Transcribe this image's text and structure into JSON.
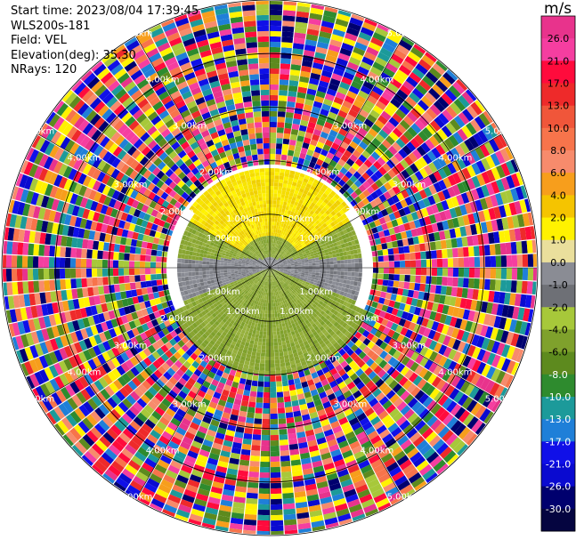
{
  "info": {
    "start_time": "Start time: 2023/08/04 17:39:45",
    "instrument": "WLS200s-181",
    "field": "Field: VEL",
    "elevation": "Elevation(deg): 35.30",
    "nrays": "NRays: 120"
  },
  "colorbar": {
    "unit": "m/s",
    "ticks": [
      "26.0",
      "21.0",
      "17.0",
      "13.0",
      "10.0",
      "8.0",
      "6.0",
      "4.0",
      "2.0",
      "1.0",
      "0.0",
      "-1.0",
      "-2.0",
      "-4.0",
      "-6.0",
      "-8.0",
      "-10.0",
      "-13.0",
      "-17.0",
      "-21.0",
      "-26.0",
      "-30.0"
    ],
    "colors": [
      "#e8338c",
      "#f53ea0",
      "#ff0b3c",
      "#ee2a2a",
      "#f0563a",
      "#f7744b",
      "#f78b6c",
      "#f79e1c",
      "#f5c400",
      "#fff200",
      "#eadf9c",
      "#8a8c94",
      "#6e7076",
      "#a7c83a",
      "#7fa12c",
      "#5d8a1e",
      "#2e8b2e",
      "#1c9a9a",
      "#1f7fd8",
      "#1010e8",
      "#0a0ad0",
      "#00006e",
      "#050540"
    ]
  },
  "chart_data": {
    "type": "heatmap",
    "projection": "polar PPI",
    "field": "VEL",
    "units": "m/s",
    "nrays": 120,
    "range_ring_labels": [
      "1.00km",
      "2.00km",
      "3.00km",
      "4.00km",
      "5.00km"
    ],
    "range_rings_km": [
      1,
      2,
      3,
      4,
      5
    ],
    "max_range_km": 5.5,
    "color_limits": [
      -30,
      26
    ],
    "zones": [
      {
        "range_km": [
          0,
          1.5
        ],
        "sector": "north",
        "dominant_value": 2.0,
        "color": "#f5dc00"
      },
      {
        "range_km": [
          0,
          2.0
        ],
        "sector": "middle",
        "dominant_value": 0.0,
        "color": "#7f8188"
      },
      {
        "range_km": [
          0,
          2.7
        ],
        "sector": "south",
        "dominant_value": -2.0,
        "color": "#8aa632"
      },
      {
        "range_km": [
          2.7,
          6.0
        ],
        "sector": "all",
        "dominant_value": "noise"
      }
    ]
  }
}
